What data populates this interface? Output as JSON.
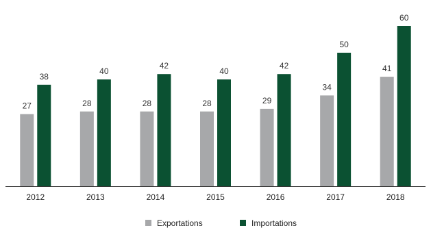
{
  "chart_data": {
    "type": "bar",
    "categories": [
      "2012",
      "2013",
      "2014",
      "2015",
      "2016",
      "2017",
      "2018"
    ],
    "series": [
      {
        "name": "Exportations",
        "color": "#a7a8aa",
        "values": [
          27,
          28,
          28,
          28,
          29,
          34,
          41
        ]
      },
      {
        "name": "Importations",
        "color": "#0b5132",
        "values": [
          38,
          40,
          42,
          40,
          42,
          50,
          60
        ]
      }
    ],
    "ylim": [
      0,
      60
    ],
    "grid": false,
    "legend_position": "bottom-center"
  }
}
